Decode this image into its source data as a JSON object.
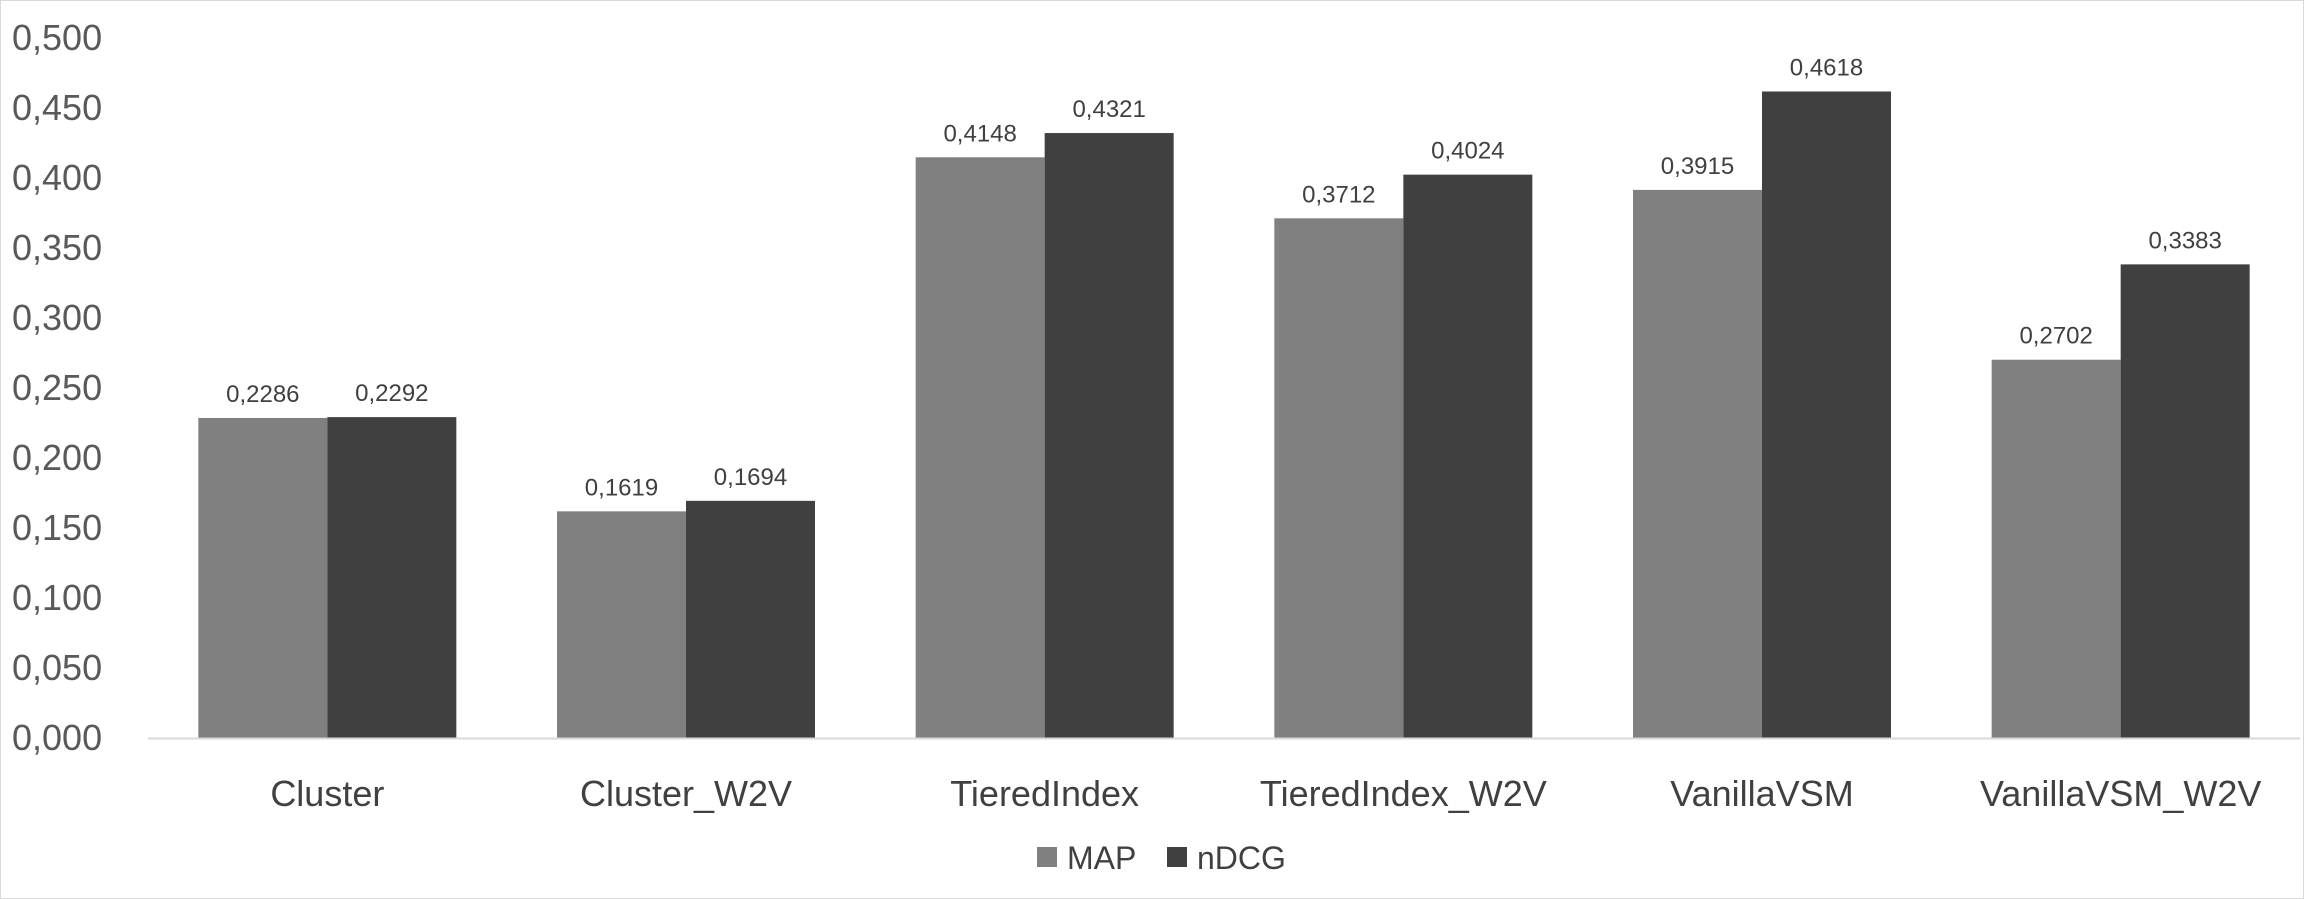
{
  "chart_data": {
    "type": "bar",
    "categories": [
      "Cluster",
      "Cluster_W2V",
      "TieredIndex",
      "TieredIndex_W2V",
      "VanillaVSM",
      "VanillaVSM_W2V"
    ],
    "series": [
      {
        "name": "MAP",
        "color": "#808080",
        "values": [
          0.2286,
          0.1619,
          0.4148,
          0.3712,
          0.3915,
          0.2702
        ],
        "labels": [
          "0,2286",
          "0,1619",
          "0,4148",
          "0,3712",
          "0,3915",
          "0,2702"
        ]
      },
      {
        "name": "nDCG",
        "color": "#404040",
        "values": [
          0.2292,
          0.1694,
          0.4321,
          0.4024,
          0.4618,
          0.3383
        ],
        "labels": [
          "0,2292",
          "0,1694",
          "0,4321",
          "0,4024",
          "0,4618",
          "0,3383"
        ]
      }
    ],
    "yticks": [
      0,
      0.05,
      0.1,
      0.15,
      0.2,
      0.25,
      0.3,
      0.35,
      0.4,
      0.45,
      0.5
    ],
    "ytick_labels": [
      "0,000",
      "0,050",
      "0,100",
      "0,150",
      "0,200",
      "0,250",
      "0,300",
      "0,350",
      "0,400",
      "0,450",
      "0,500"
    ],
    "ylim": [
      0,
      0.5
    ],
    "title": "",
    "xlabel": "",
    "ylabel": "",
    "grid": false,
    "legend_position": "bottom"
  }
}
